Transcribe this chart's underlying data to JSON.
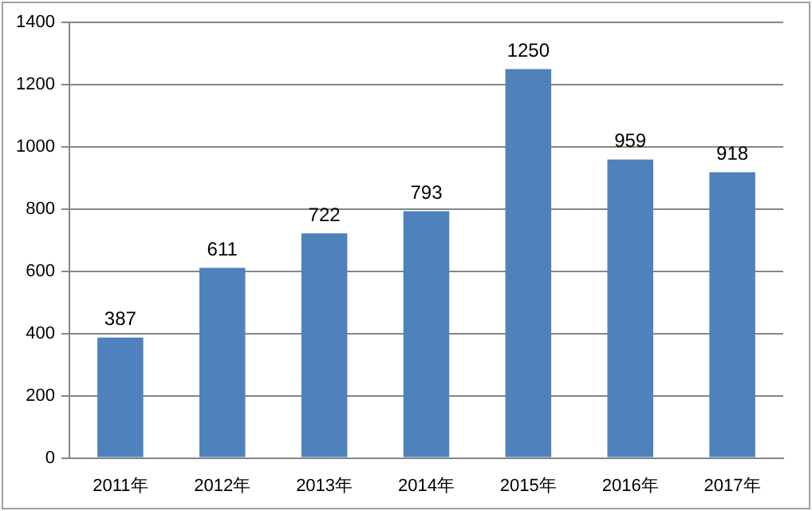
{
  "chart_data": {
    "type": "bar",
    "categories": [
      "2011年",
      "2012年",
      "2013年",
      "2014年",
      "2015年",
      "2016年",
      "2017年"
    ],
    "values": [
      387,
      611,
      722,
      793,
      1250,
      959,
      918
    ],
    "color": "#4f81bd",
    "ylim": [
      0,
      1400
    ],
    "yticks": [
      0,
      200,
      400,
      600,
      800,
      1000,
      1200,
      1400
    ],
    "grid": "y",
    "data_labels": true
  }
}
